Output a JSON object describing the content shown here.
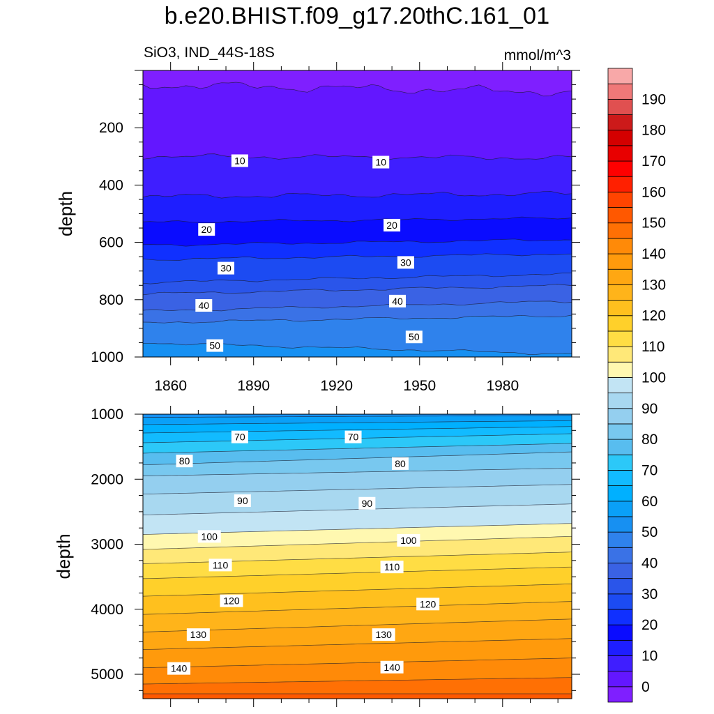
{
  "header": {
    "title": "b.e20.BHIST.f09_g17.20thC.161_01",
    "subtitle_left": "SiO3, IND_44S-18S",
    "subtitle_right": "mmol/m^3"
  },
  "colors": {
    "levels": [
      -5,
      0,
      5,
      10,
      15,
      20,
      25,
      30,
      35,
      40,
      45,
      50,
      55,
      60,
      65,
      70,
      75,
      80,
      85,
      90,
      95,
      100,
      105,
      110,
      115,
      120,
      125,
      130,
      135,
      140,
      145,
      150,
      155,
      160,
      165,
      170,
      175,
      180,
      185,
      190,
      195,
      200
    ],
    "fills": [
      "#7f1fff",
      "#6317ff",
      "#3f1eff",
      "#1e1eff",
      "#0a0cff",
      "#1030ff",
      "#1c4bf2",
      "#2a55ea",
      "#3a62e4",
      "#3a72e6",
      "#2f82ec",
      "#1790f2",
      "#0aa0f8",
      "#00b0ff",
      "#12bbff",
      "#2cc8f8",
      "#58bdef",
      "#78c8ef",
      "#94cfef",
      "#a8d8f0",
      "#c2e4f4",
      "#fff8b0",
      "#ffe878",
      "#ffdd44",
      "#ffd02a",
      "#ffc01e",
      "#ffb41a",
      "#ffa712",
      "#ff9a0c",
      "#ff8a08",
      "#ff7004",
      "#ff5800",
      "#ff4400",
      "#ff2000",
      "#ff0000",
      "#e80000",
      "#d40000",
      "#cc1a1a",
      "#e05050",
      "#f07878",
      "#f8a8a8"
    ]
  },
  "chart_data": [
    {
      "type": "contour",
      "panel": "upper",
      "title": "",
      "xlabel": "",
      "ylabel": "depth",
      "xlim": [
        1850,
        2005
      ],
      "ylim": [
        1000,
        0
      ],
      "x_ticks": [
        1860,
        1890,
        1920,
        1950,
        1980
      ],
      "y_ticks": [
        200,
        400,
        600,
        800,
        1000
      ],
      "contour_levels": [
        0,
        5,
        10,
        15,
        20,
        25,
        30,
        35,
        40,
        45,
        50
      ],
      "contour_depths_start": [
        50,
        300,
        440,
        530,
        610,
        660,
        740,
        780,
        840,
        880,
        950
      ],
      "contour_depths_end": [
        75,
        305,
        430,
        515,
        590,
        640,
        710,
        750,
        805,
        855,
        990
      ],
      "contour_labels": [
        {
          "text": "10",
          "year": 1885,
          "depth": 315
        },
        {
          "text": "10",
          "year": 1936,
          "depth": 320
        },
        {
          "text": "20",
          "year": 1873,
          "depth": 555
        },
        {
          "text": "20",
          "year": 1940,
          "depth": 540
        },
        {
          "text": "30",
          "year": 1880,
          "depth": 690
        },
        {
          "text": "30",
          "year": 1945,
          "depth": 670
        },
        {
          "text": "40",
          "year": 1872,
          "depth": 820
        },
        {
          "text": "40",
          "year": 1942,
          "depth": 805
        },
        {
          "text": "50",
          "year": 1876,
          "depth": 960
        },
        {
          "text": "50",
          "year": 1948,
          "depth": 930
        }
      ]
    },
    {
      "type": "contour",
      "panel": "lower",
      "title": "",
      "xlabel": "",
      "ylabel": "depth",
      "xlim": [
        1850,
        2005
      ],
      "ylim": [
        5375,
        1000
      ],
      "x_ticks": [],
      "y_ticks": [
        1000,
        2000,
        3000,
        4000,
        5000
      ],
      "contour_levels": [
        55,
        60,
        65,
        70,
        75,
        80,
        85,
        90,
        95,
        100,
        105,
        110,
        115,
        120,
        125,
        130,
        135,
        140,
        145,
        150
      ],
      "contour_depths_start": [
        1050,
        1160,
        1290,
        1440,
        1600,
        1780,
        1950,
        2230,
        2550,
        2850,
        3080,
        3300,
        3530,
        3800,
        4080,
        4350,
        4620,
        4900,
        5150,
        5300
      ],
      "contour_depths_end": [
        1020,
        1100,
        1190,
        1300,
        1450,
        1580,
        1830,
        2080,
        2380,
        2680,
        2880,
        3120,
        3350,
        3610,
        3880,
        4150,
        4450,
        4750,
        5050,
        5300
      ],
      "contour_labels": [
        {
          "text": "70",
          "year": 1885,
          "depth": 1350
        },
        {
          "text": "70",
          "year": 1926,
          "depth": 1350
        },
        {
          "text": "80",
          "year": 1865,
          "depth": 1720
        },
        {
          "text": "80",
          "year": 1943,
          "depth": 1760
        },
        {
          "text": "90",
          "year": 1886,
          "depth": 2330
        },
        {
          "text": "90",
          "year": 1931,
          "depth": 2370
        },
        {
          "text": "100",
          "year": 1874,
          "depth": 2880
        },
        {
          "text": "100",
          "year": 1946,
          "depth": 2940
        },
        {
          "text": "110",
          "year": 1878,
          "depth": 3320
        },
        {
          "text": "110",
          "year": 1940,
          "depth": 3350
        },
        {
          "text": "120",
          "year": 1882,
          "depth": 3870
        },
        {
          "text": "120",
          "year": 1953,
          "depth": 3920
        },
        {
          "text": "130",
          "year": 1870,
          "depth": 4390
        },
        {
          "text": "130",
          "year": 1937,
          "depth": 4390
        },
        {
          "text": "140",
          "year": 1863,
          "depth": 4910
        },
        {
          "text": "140",
          "year": 1940,
          "depth": 4890
        }
      ]
    }
  ],
  "colorbar": {
    "labels": [
      "0",
      "10",
      "20",
      "30",
      "40",
      "50",
      "60",
      "70",
      "80",
      "90",
      "100",
      "110",
      "120",
      "130",
      "140",
      "150",
      "160",
      "170",
      "180",
      "190"
    ]
  }
}
